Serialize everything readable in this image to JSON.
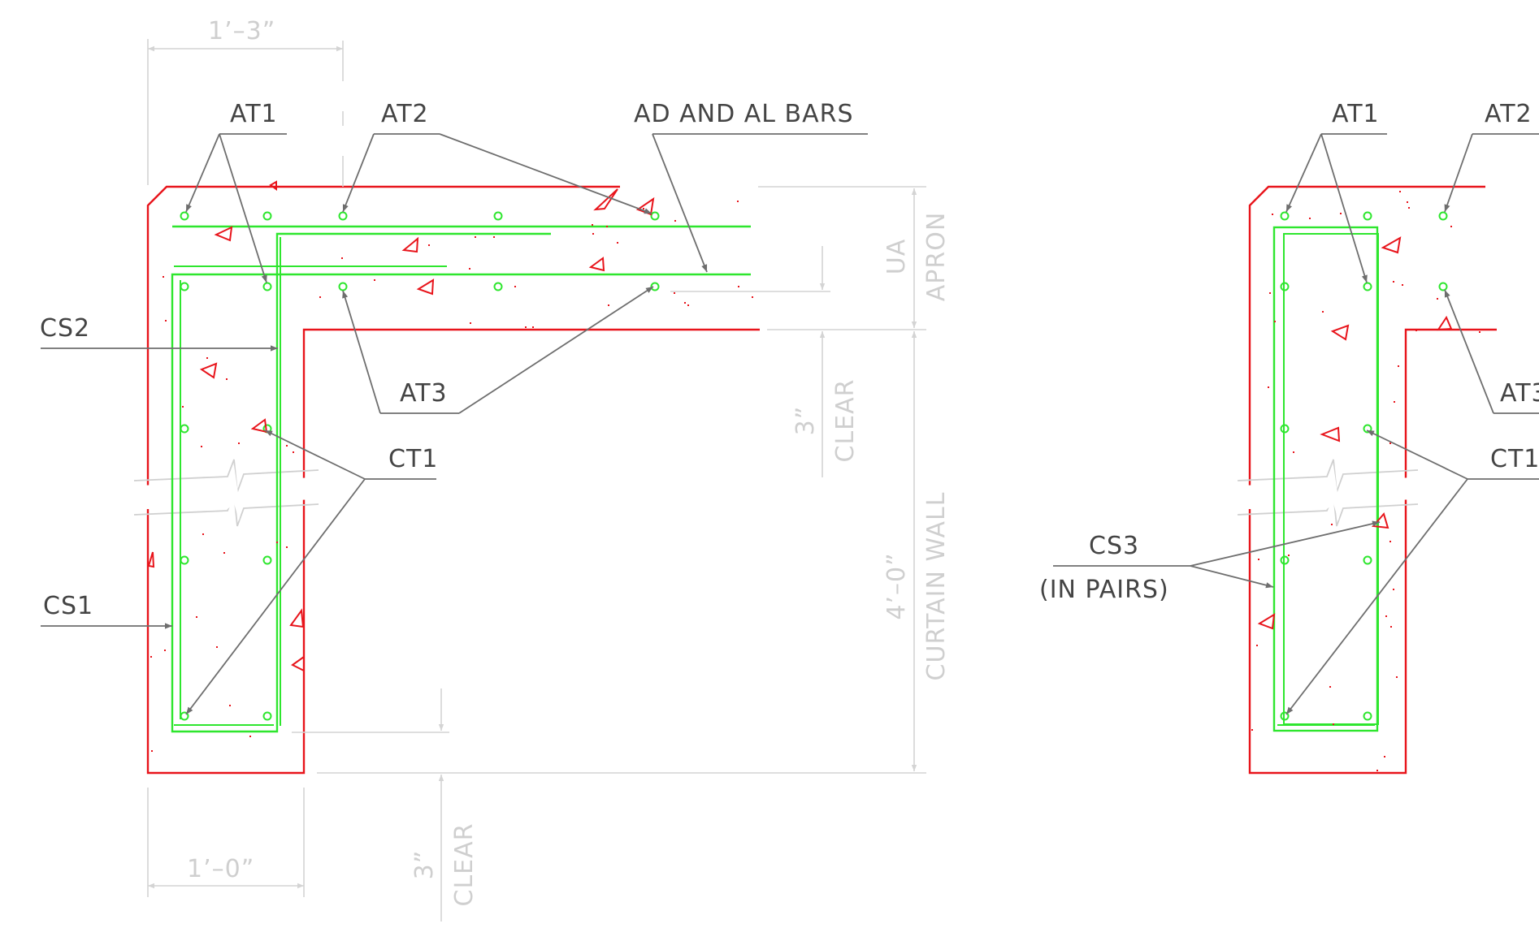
{
  "labels": {
    "left_at1": "AT1",
    "left_at2": "AT2",
    "ad_al_bars": "AD AND AL BARS",
    "left_cs2": "CS2",
    "left_at3": "AT3",
    "left_ct1": "CT1",
    "left_cs1": "CS1",
    "right_at1": "AT1",
    "right_at2": "AT2",
    "right_at3": "AT3",
    "right_ct1": "CT1",
    "cs3_line1": "CS3",
    "cs3_line2": "(IN PAIRS)"
  },
  "dimensions": {
    "top_width": "1’–3”",
    "bottom_width": "1’–0”",
    "apron_value": "UA",
    "apron_name": "APRON",
    "clear_top_value": "3”",
    "clear_top_name": "CLEAR",
    "wall_value": "4’–0”",
    "wall_name": "CURTAIN WALL",
    "clear_bottom_value": "3”",
    "clear_bottom_name": "CLEAR"
  },
  "colors": {
    "concrete_outline": "#e8141b",
    "reinforcement": "#2ee62e",
    "leader": "#6e6e6e",
    "dimension": "#cfcfcf"
  }
}
